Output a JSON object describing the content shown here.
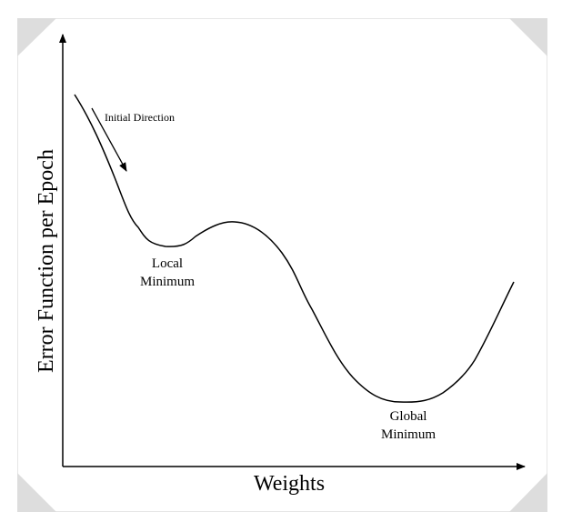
{
  "diagram": {
    "y_axis_label": "Error Function per Epoch",
    "x_axis_label": "Weights",
    "annotations": {
      "initial_direction": "Initial Direction",
      "local_minimum_line1": "Local",
      "local_minimum_line2": "Minimum",
      "global_minimum_line1": "Global",
      "global_minimum_line2": "Minimum"
    }
  },
  "colors": {
    "frame_border": "#e6e6e6",
    "corner_fill": "#dddddd",
    "stroke": "#000000"
  }
}
